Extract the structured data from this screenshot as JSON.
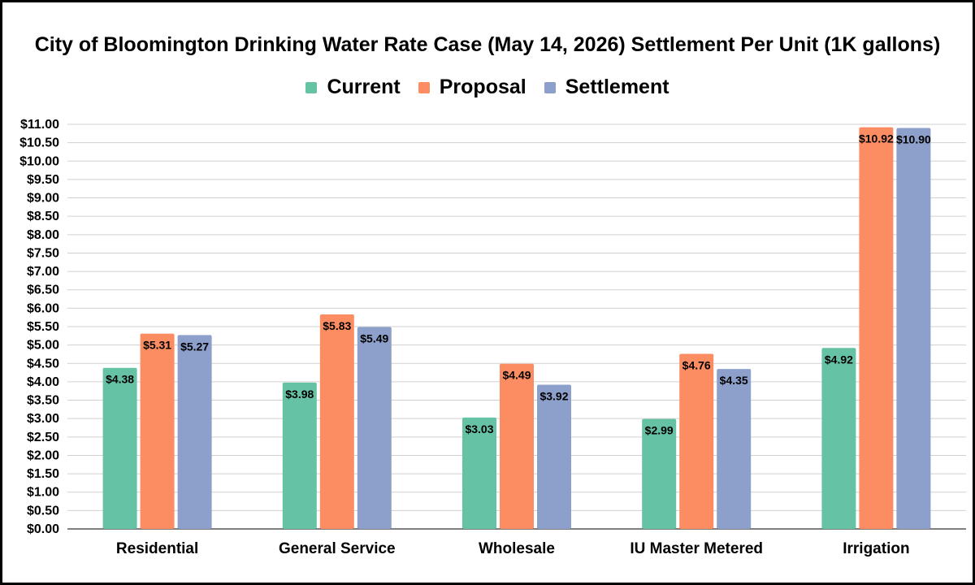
{
  "chart_data": {
    "type": "bar",
    "title": "City of Bloomington Drinking Water Rate Case (May 14, 2026) Settlement Per Unit (1K gallons)",
    "categories": [
      "Residential",
      "General Service",
      "Wholesale",
      "IU Master Metered",
      "Irrigation"
    ],
    "series": [
      {
        "name": "Current",
        "color": "#66c2a5",
        "values": [
          4.38,
          3.98,
          3.03,
          2.99,
          4.92
        ],
        "labels": [
          "$4.38",
          "$3.98",
          "$3.03",
          "$2.99",
          "$4.92"
        ]
      },
      {
        "name": "Proposal",
        "color": "#fc8d62",
        "values": [
          5.31,
          5.83,
          4.49,
          4.76,
          10.92
        ],
        "labels": [
          "$5.31",
          "$5.83",
          "$4.49",
          "$4.76",
          "$10.92"
        ]
      },
      {
        "name": "Settlement",
        "color": "#8da0cb",
        "values": [
          5.27,
          5.49,
          3.92,
          4.35,
          10.9
        ],
        "labels": [
          "$5.27",
          "$5.49",
          "$3.92",
          "$4.35",
          "$10.90"
        ]
      }
    ],
    "ylim": [
      0,
      11
    ],
    "ytick_step": 0.5,
    "ytick_labels": [
      "$0.00",
      "$0.50",
      "$1.00",
      "$1.50",
      "$2.00",
      "$2.50",
      "$3.00",
      "$3.50",
      "$4.00",
      "$4.50",
      "$5.00",
      "$5.50",
      "$6.00",
      "$6.50",
      "$7.00",
      "$7.50",
      "$8.00",
      "$8.50",
      "$9.00",
      "$9.50",
      "$10.00",
      "$10.50",
      "$11.00"
    ],
    "xlabel": "",
    "ylabel": "",
    "legend": "top",
    "grid": true
  }
}
